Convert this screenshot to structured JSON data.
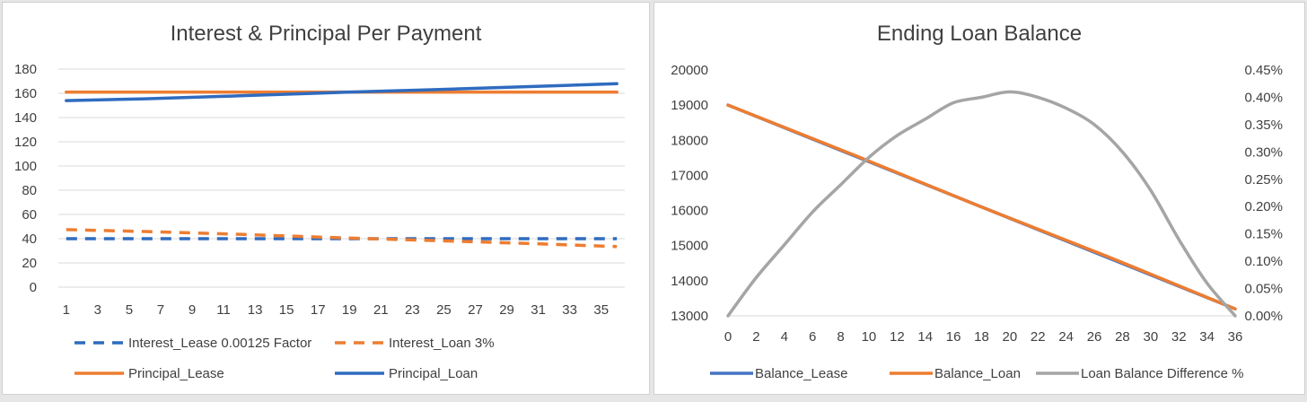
{
  "colors": {
    "blue": "#2f6bbf",
    "orange": "#ed7d31",
    "gray": "#a5a5a5",
    "grid": "#d9d9d9"
  },
  "chart_data": [
    {
      "type": "line",
      "title": "Interest & Principal Per Payment",
      "xlabel": "",
      "ylabel": "",
      "x_ticks": [
        "1",
        "3",
        "5",
        "7",
        "9",
        "11",
        "13",
        "15",
        "17",
        "19",
        "21",
        "23",
        "25",
        "27",
        "29",
        "31",
        "33",
        "35"
      ],
      "y_ticks": [
        "180",
        "160",
        "140",
        "120",
        "100",
        "80",
        "60",
        "40",
        "20",
        "0"
      ],
      "ylim": [
        0,
        180
      ],
      "xlim": [
        1,
        36
      ],
      "grid": true,
      "legend_position": "bottom",
      "series": [
        {
          "name": "Interest_Lease 0.00125 Factor",
          "style": "dashed",
          "color": "#2f6bbf",
          "x": [
            1,
            36
          ],
          "y": [
            40,
            40
          ]
        },
        {
          "name": "Interest_Loan 3%",
          "style": "dashed",
          "color": "#ed7d31",
          "x": [
            1,
            6,
            12,
            18,
            24,
            30,
            36
          ],
          "y": [
            47.5,
            45.9,
            43.6,
            40.9,
            38.6,
            36.2,
            33.5
          ]
        },
        {
          "name": "Principal_Lease",
          "style": "solid",
          "color": "#ed7d31",
          "x": [
            1,
            36
          ],
          "y": [
            161,
            161
          ]
        },
        {
          "name": "Principal_Loan",
          "style": "solid",
          "color": "#2f6bbf",
          "x": [
            1,
            6,
            12,
            18,
            24,
            30,
            36
          ],
          "y": [
            154,
            155.5,
            157.9,
            160.6,
            162.9,
            165.3,
            168
          ]
        }
      ]
    },
    {
      "type": "line",
      "title": "Ending Loan Balance",
      "xlabel": "",
      "ylabel": "",
      "x_ticks": [
        "0",
        "2",
        "4",
        "6",
        "8",
        "10",
        "12",
        "14",
        "16",
        "18",
        "20",
        "22",
        "24",
        "26",
        "28",
        "30",
        "32",
        "34",
        "36"
      ],
      "y_ticks": [
        "20000",
        "19000",
        "18000",
        "17000",
        "16000",
        "15000",
        "14000",
        "13000"
      ],
      "y2_ticks": [
        "0.45%",
        "0.40%",
        "0.35%",
        "0.30%",
        "0.25%",
        "0.20%",
        "0.15%",
        "0.10%",
        "0.05%",
        "0.00%"
      ],
      "ylim": [
        13000,
        20000
      ],
      "y2lim": [
        0,
        0.45
      ],
      "xlim": [
        0,
        36
      ],
      "grid": false,
      "legend_position": "bottom",
      "series": [
        {
          "name": "Balance_Lease",
          "axis": "left",
          "color": "#4472c4",
          "x": [
            0,
            36
          ],
          "y": [
            19000,
            13200
          ]
        },
        {
          "name": "Balance_Loan",
          "axis": "left",
          "color": "#ed7d31",
          "x": [
            0,
            9,
            18,
            27,
            36
          ],
          "y": [
            19000,
            17570,
            16100,
            14680,
            13200
          ]
        },
        {
          "name": "Loan Balance Difference %",
          "axis": "right",
          "color": "#a5a5a5",
          "x": [
            0,
            2,
            4,
            6,
            8,
            10,
            12,
            14,
            16,
            18,
            20,
            22,
            24,
            26,
            28,
            30,
            32,
            34,
            36
          ],
          "y": [
            0,
            0.07,
            0.13,
            0.19,
            0.24,
            0.29,
            0.33,
            0.36,
            0.39,
            0.4,
            0.41,
            0.4,
            0.38,
            0.35,
            0.3,
            0.23,
            0.14,
            0.06,
            0
          ]
        }
      ]
    }
  ]
}
